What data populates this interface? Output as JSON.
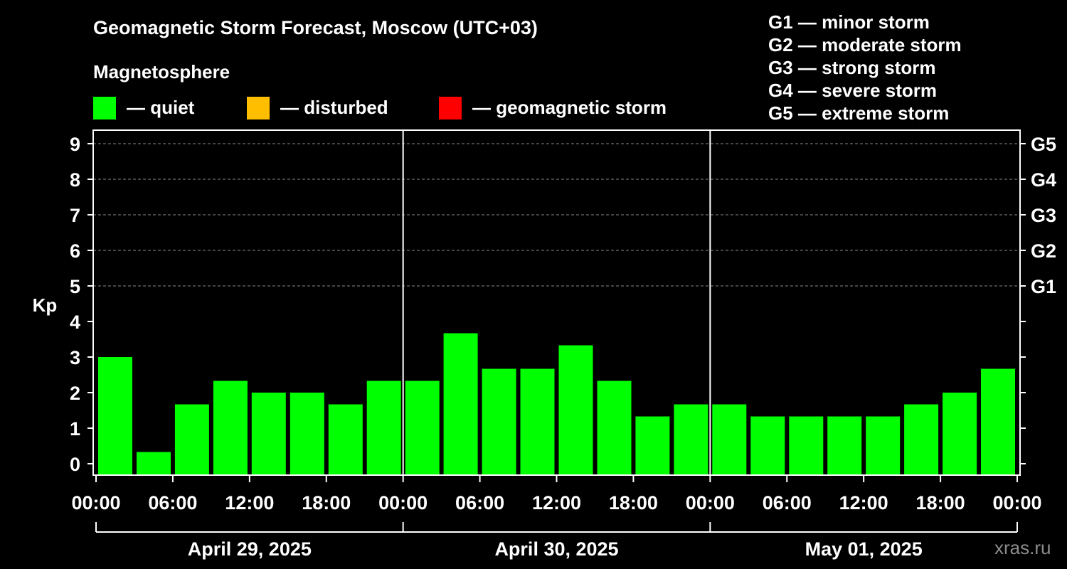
{
  "title": "Geomagnetic Storm Forecast, Moscow (UTC+03)",
  "magnetosphere": {
    "title": "Magnetosphere",
    "legend": [
      {
        "label": "— quiet",
        "color": "#00ff00"
      },
      {
        "label": "— disturbed",
        "color": "#ffbf00"
      },
      {
        "label": "— geomagnetic storm",
        "color": "#ff0000"
      }
    ]
  },
  "g_scale": [
    "G1 — minor storm",
    "G2 — moderate storm",
    "G3 — strong storm",
    "G4 — severe storm",
    "G5 — extreme storm"
  ],
  "watermark": "xras.ru",
  "chart_data": {
    "type": "bar",
    "ylabel": "Kp",
    "ylim": [
      0,
      9
    ],
    "y_ticks": [
      "0",
      "1",
      "2",
      "3",
      "4",
      "5",
      "6",
      "7",
      "8",
      "9"
    ],
    "right_ticks": [
      {
        "value": 5,
        "label": "G1"
      },
      {
        "value": 6,
        "label": "G2"
      },
      {
        "value": 7,
        "label": "G3"
      },
      {
        "value": 8,
        "label": "G4"
      },
      {
        "value": 9,
        "label": "G5"
      }
    ],
    "grid": "dashed horizontal lines at 5, 6, 7, 8, 9",
    "x_tick_labels": [
      "00:00",
      "06:00",
      "12:00",
      "18:00",
      "00:00",
      "06:00",
      "12:00",
      "18:00",
      "00:00",
      "06:00",
      "12:00",
      "18:00",
      "00:00"
    ],
    "days": [
      "April 29, 2025",
      "April 30, 2025",
      "May 01, 2025"
    ],
    "bar_hours": 3,
    "values": [
      3.0,
      0.33,
      1.67,
      2.33,
      2.0,
      2.0,
      1.67,
      2.33,
      2.33,
      3.67,
      2.67,
      2.67,
      3.33,
      2.33,
      1.33,
      1.67,
      1.67,
      1.33,
      1.33,
      1.33,
      1.33,
      1.67,
      2.0,
      2.67
    ],
    "bar_colors": [
      "#00ff00",
      "#00ff00",
      "#00ff00",
      "#00ff00",
      "#00ff00",
      "#00ff00",
      "#00ff00",
      "#00ff00",
      "#00ff00",
      "#00ff00",
      "#00ff00",
      "#00ff00",
      "#00ff00",
      "#00ff00",
      "#00ff00",
      "#00ff00",
      "#00ff00",
      "#00ff00",
      "#00ff00",
      "#00ff00",
      "#00ff00",
      "#00ff00",
      "#00ff00",
      "#00ff00"
    ]
  }
}
